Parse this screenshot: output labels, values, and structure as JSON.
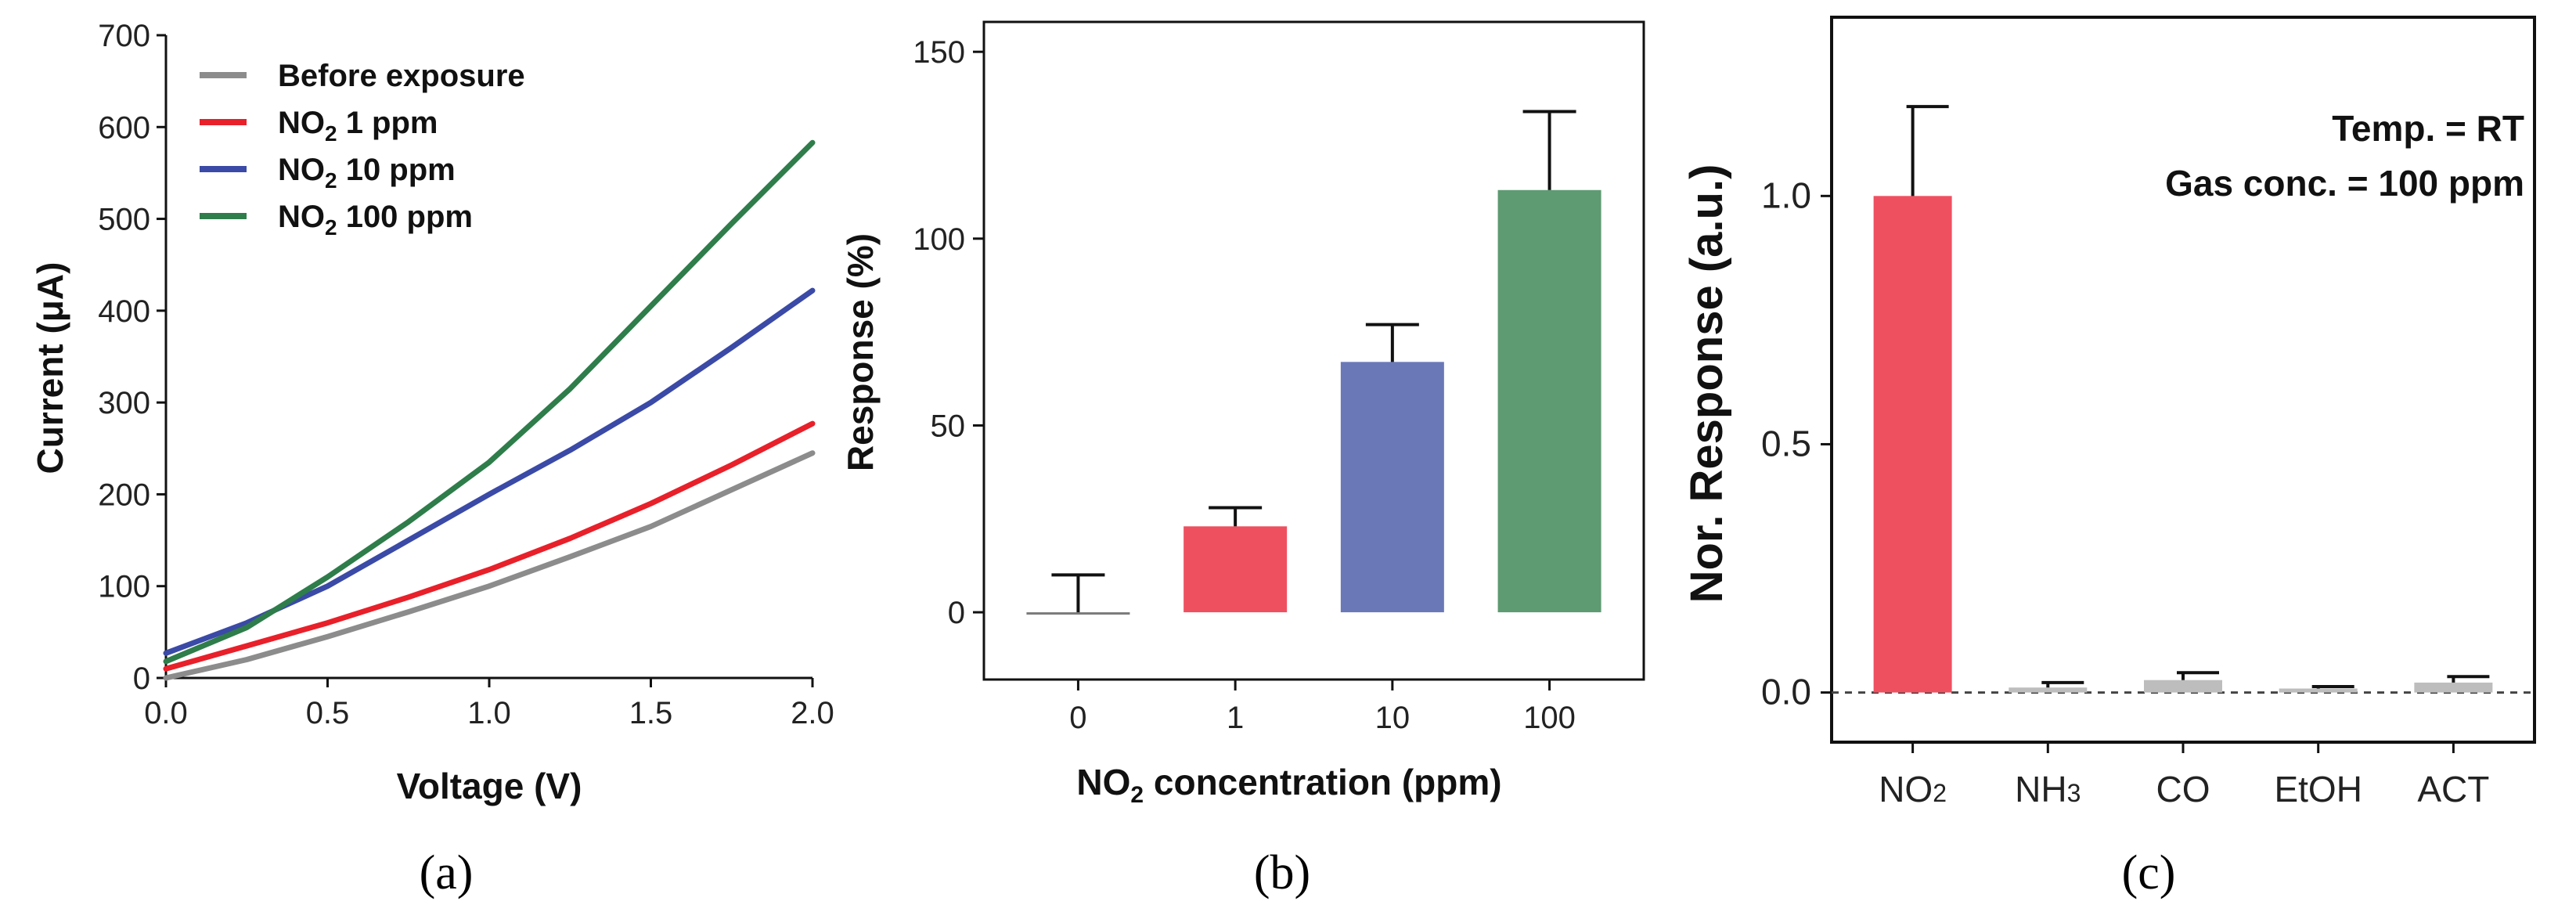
{
  "chart_data": [
    {
      "panel": "(a)",
      "type": "line",
      "xlabel": "Voltage (V)",
      "ylabel": "Current (μA)",
      "xlim": [
        0,
        2.0
      ],
      "ylim": [
        0,
        700
      ],
      "xticks": [
        "0.0",
        "0.5",
        "1.0",
        "1.5",
        "2.0"
      ],
      "yticks": [
        "0",
        "100",
        "200",
        "300",
        "400",
        "500",
        "600",
        "700"
      ],
      "legend_position": "top-left",
      "series": [
        {
          "name": "Before exposure",
          "color": "#8c8c8c",
          "x": [
            0,
            0.25,
            0.5,
            0.75,
            1.0,
            1.25,
            1.5,
            1.75,
            2.0
          ],
          "y": [
            0,
            20,
            45,
            72,
            100,
            132,
            165,
            205,
            245
          ]
        },
        {
          "name": "NO2 1 ppm",
          "name_base": "NO",
          "name_sub": "2",
          "name_rest": " 1 ppm",
          "color": "#e8202a",
          "x": [
            0,
            0.25,
            0.5,
            0.75,
            1.0,
            1.25,
            1.5,
            1.75,
            2.0
          ],
          "y": [
            10,
            35,
            60,
            88,
            118,
            152,
            190,
            232,
            277
          ]
        },
        {
          "name": "NO2 10 ppm",
          "name_base": "NO",
          "name_sub": "2",
          "name_rest": " 10 ppm",
          "color": "#3a4aa6",
          "x": [
            0,
            0.25,
            0.5,
            0.75,
            1.0,
            1.25,
            1.5,
            1.75,
            2.0
          ],
          "y": [
            27,
            60,
            100,
            150,
            200,
            248,
            300,
            360,
            422
          ]
        },
        {
          "name": "NO2 100 ppm",
          "name_base": "NO",
          "name_sub": "2",
          "name_rest": " 100 ppm",
          "color": "#2e7d4a",
          "x": [
            0,
            0.25,
            0.5,
            0.75,
            1.0,
            1.25,
            1.5,
            1.75,
            2.0
          ],
          "y": [
            18,
            55,
            110,
            170,
            235,
            315,
            405,
            495,
            583
          ]
        }
      ]
    },
    {
      "panel": "(b)",
      "type": "bar",
      "xlabel": "NO2 concentration (ppm)",
      "xlabel_base": "NO",
      "xlabel_sub": "2",
      "xlabel_rest": " concentration (ppm)",
      "ylabel": "Response (%)",
      "ylim": [
        -18,
        158
      ],
      "yticks": [
        "0",
        "50",
        "100",
        "150"
      ],
      "categories": [
        "0",
        "1",
        "10",
        "100"
      ],
      "values": [
        0,
        23,
        67,
        113
      ],
      "errors": [
        10,
        5,
        10,
        21
      ],
      "colors": [
        "#7a7a7a",
        "#ef5060",
        "#6a78b8",
        "#5e9a72"
      ]
    },
    {
      "panel": "(c)",
      "type": "bar",
      "xlabel": "",
      "ylabel": "Nor. Response (a.u.)",
      "ylim": [
        -0.1,
        1.36
      ],
      "yticks": [
        "0.0",
        "0.5",
        "1.0"
      ],
      "categories": [
        "NO2",
        "NH3",
        "CO",
        "EtOH",
        "ACT"
      ],
      "category_parts": [
        [
          "NO",
          "2"
        ],
        [
          "NH",
          "3"
        ],
        [
          "CO",
          ""
        ],
        [
          "EtOH",
          ""
        ],
        [
          "ACT",
          ""
        ]
      ],
      "values": [
        1.0,
        0.01,
        0.025,
        0.008,
        0.02
      ],
      "errors": [
        0.18,
        0.01,
        0.015,
        0.004,
        0.012
      ],
      "colors": [
        "#ef5060",
        "#bdbdbd",
        "#bdbdbd",
        "#bdbdbd",
        "#bdbdbd"
      ],
      "baseline_dashed": true,
      "annotations": [
        "Temp. = RT",
        "Gas conc. = 100 ppm"
      ]
    }
  ]
}
